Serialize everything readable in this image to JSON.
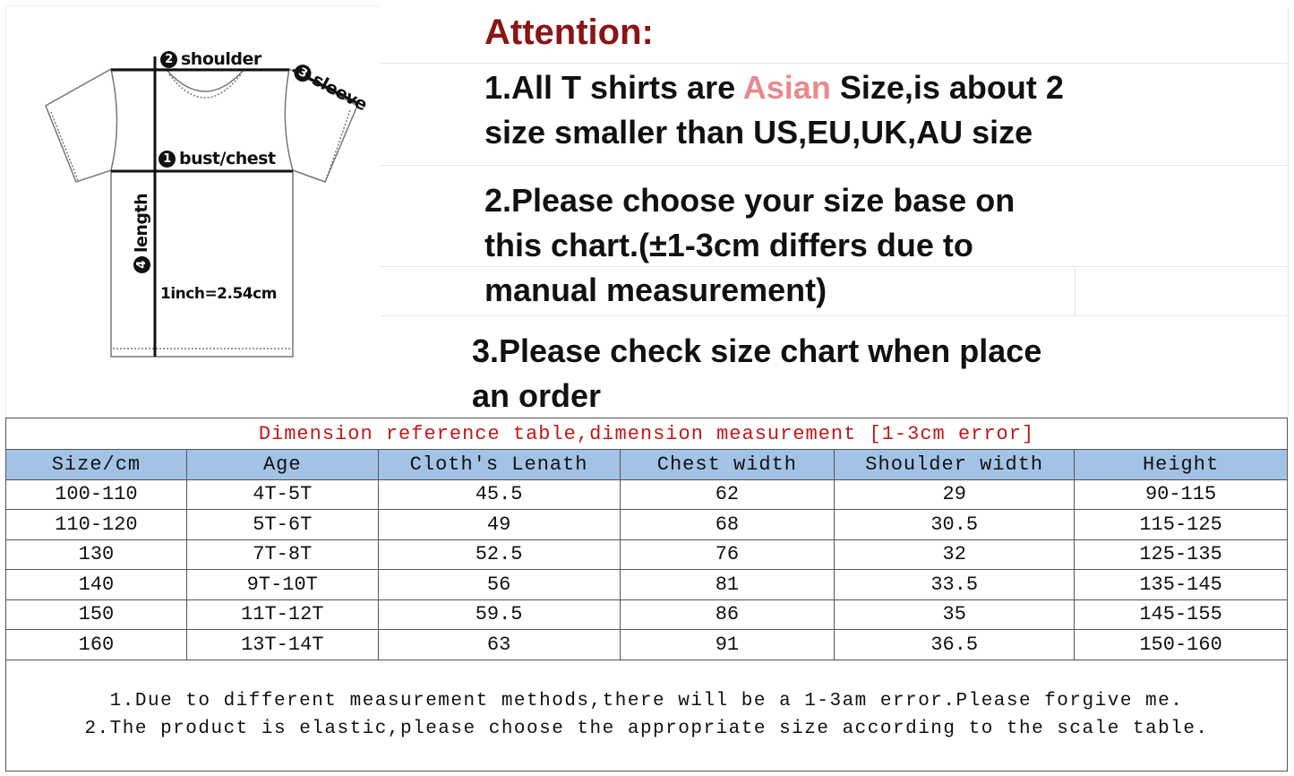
{
  "diagram": {
    "labels": {
      "shoulder": "shoulder",
      "sleeve": "sleeve",
      "chest": "bust/chest",
      "length": "length",
      "conversion": "1inch=2.54cm"
    },
    "numbers": {
      "chest": "1",
      "shoulder": "2",
      "sleeve": "3",
      "length": "4"
    }
  },
  "attention": {
    "title": "Attention:",
    "p1_before": "1.All T shirts are ",
    "p1_highlight": "Asian",
    "p1_after": " Size,is about 2",
    "p1_line2": "size smaller than US,EU,UK,AU size",
    "p2_line1": "2.Please choose your size base on",
    "p2_line2": "this chart.(±1-3cm differs due to",
    "p2_line3": "manual measurement)",
    "p3_line1": "3.Please check size chart when place",
    "p3_line2": "an order",
    "colors": {
      "title": "#8b1414",
      "highlight": "#e88a8f"
    }
  },
  "table": {
    "title": "Dimension reference table,dimension measurement [1-3cm error]",
    "headers": [
      "Size/cm",
      "Age",
      "Cloth's Lenath",
      "Chest width",
      "Shoulder width",
      "Height"
    ],
    "rows": [
      [
        "100-110",
        "4T-5T",
        "45.5",
        "62",
        "29",
        "90-115"
      ],
      [
        "110-120",
        "5T-6T",
        "49",
        "68",
        "30.5",
        "115-125"
      ],
      [
        "130",
        "7T-8T",
        "52.5",
        "76",
        "32",
        "125-135"
      ],
      [
        "140",
        "9T-10T",
        "56",
        "81",
        "33.5",
        "135-145"
      ],
      [
        "150",
        "11T-12T",
        "59.5",
        "86",
        "35",
        "145-155"
      ],
      [
        "160",
        "13T-14T",
        "63",
        "91",
        "36.5",
        "150-160"
      ]
    ],
    "notes": [
      "1.Due to different measurement methods,there will be a 1-3am error.Please forgive me.",
      "2.The product is elastic,please choose the appropriate size according to the scale table."
    ],
    "header_color": "#a3c3e6",
    "title_color": "#c01818"
  }
}
